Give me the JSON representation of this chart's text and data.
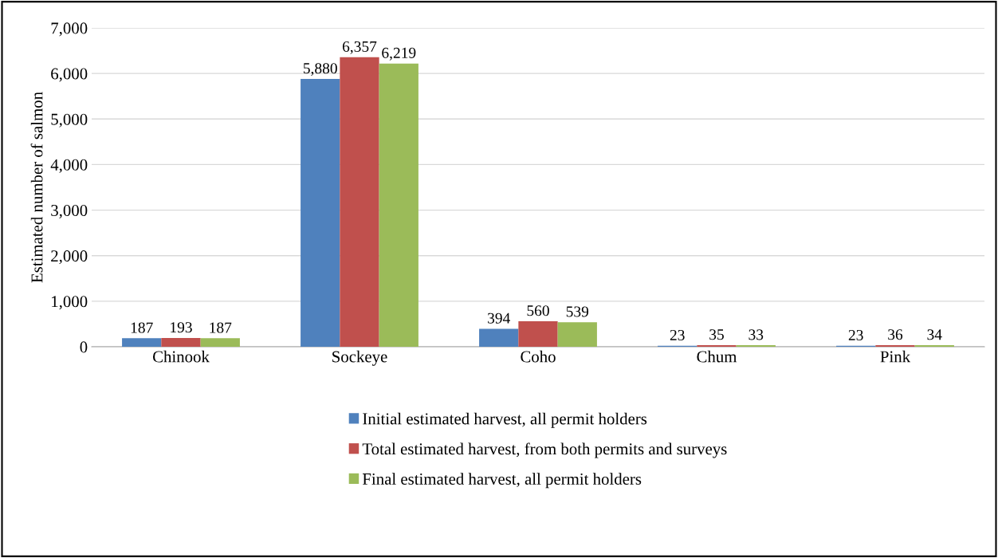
{
  "chart_data": {
    "type": "bar",
    "ylabel": "Estimated number of salmon",
    "categories": [
      "Chinook",
      "Sockeye",
      "Coho",
      "Chum",
      "Pink"
    ],
    "series": [
      {
        "name": "Initial estimated harvest, all permit holders",
        "color": "#4f81bd",
        "values": [
          187,
          5880,
          394,
          23,
          23
        ],
        "value_labels": [
          "187",
          "5,880",
          "394",
          "23",
          "23"
        ]
      },
      {
        "name": "Total estimated harvest, from both permits and surveys",
        "color": "#c0504d",
        "values": [
          193,
          6357,
          560,
          35,
          36
        ],
        "value_labels": [
          "193",
          "6,357",
          "560",
          "35",
          "36"
        ]
      },
      {
        "name": "Final estimated harvest, all permit holders",
        "color": "#9bbb59",
        "values": [
          187,
          6219,
          539,
          33,
          34
        ],
        "value_labels": [
          "187",
          "6,219",
          "539",
          "33",
          "34"
        ]
      }
    ],
    "ylim": [
      0,
      7000
    ],
    "yticks": [
      {
        "value": 0,
        "label": "0"
      },
      {
        "value": 1000,
        "label": "1,000"
      },
      {
        "value": 2000,
        "label": "2,000"
      },
      {
        "value": 3000,
        "label": "3,000"
      },
      {
        "value": 4000,
        "label": "4,000"
      },
      {
        "value": 5000,
        "label": "5,000"
      },
      {
        "value": 6000,
        "label": "6,000"
      },
      {
        "value": 7000,
        "label": "7,000"
      }
    ],
    "grid": "y",
    "legend": "bottom"
  }
}
